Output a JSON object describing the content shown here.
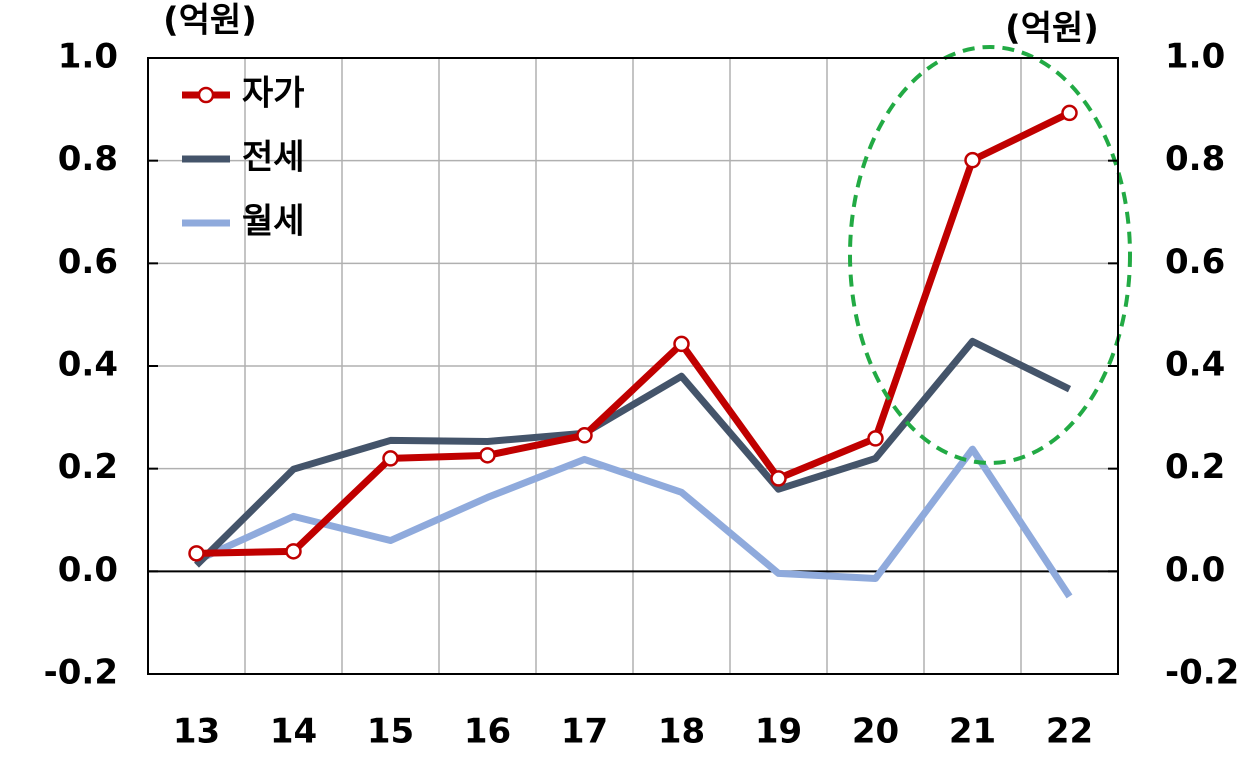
{
  "chart_data": {
    "type": "line",
    "y_label": "(억원)",
    "y2_label": "(억원)",
    "categories": [
      "13",
      "14",
      "15",
      "16",
      "17",
      "18",
      "19",
      "20",
      "21",
      "22"
    ],
    "series": [
      {
        "name": "자가",
        "color": "#c00000",
        "markers": true,
        "values": [
          0.035,
          0.039,
          0.22,
          0.226,
          0.265,
          0.443,
          0.181,
          0.259,
          0.801,
          0.893
        ]
      },
      {
        "name": "전세",
        "color": "#44546a",
        "markers": false,
        "values": [
          0.012,
          0.199,
          0.255,
          0.253,
          0.269,
          0.38,
          0.16,
          0.22,
          0.448,
          0.355
        ]
      },
      {
        "name": "월세",
        "color": "#8faadc",
        "markers": false,
        "values": [
          0.021,
          0.107,
          0.06,
          0.144,
          0.218,
          0.154,
          -0.004,
          -0.014,
          0.238,
          -0.049
        ]
      }
    ],
    "ylim": [
      -0.2,
      1.0
    ],
    "yticks": [
      -0.2,
      {
        "value": 0,
        "label": "0.0"
      },
      0.2,
      0.4,
      0.6,
      0.8,
      {
        "value": 1,
        "label": "1.0"
      }
    ],
    "y2lim": [
      -0.2,
      1.0
    ],
    "y2ticks": [
      -0.2,
      {
        "value": 0,
        "label": "0.0"
      },
      0.2,
      0.4,
      0.6,
      0.8,
      {
        "value": 1,
        "label": "1.0"
      }
    ],
    "grid": true,
    "legend": "upper left"
  }
}
